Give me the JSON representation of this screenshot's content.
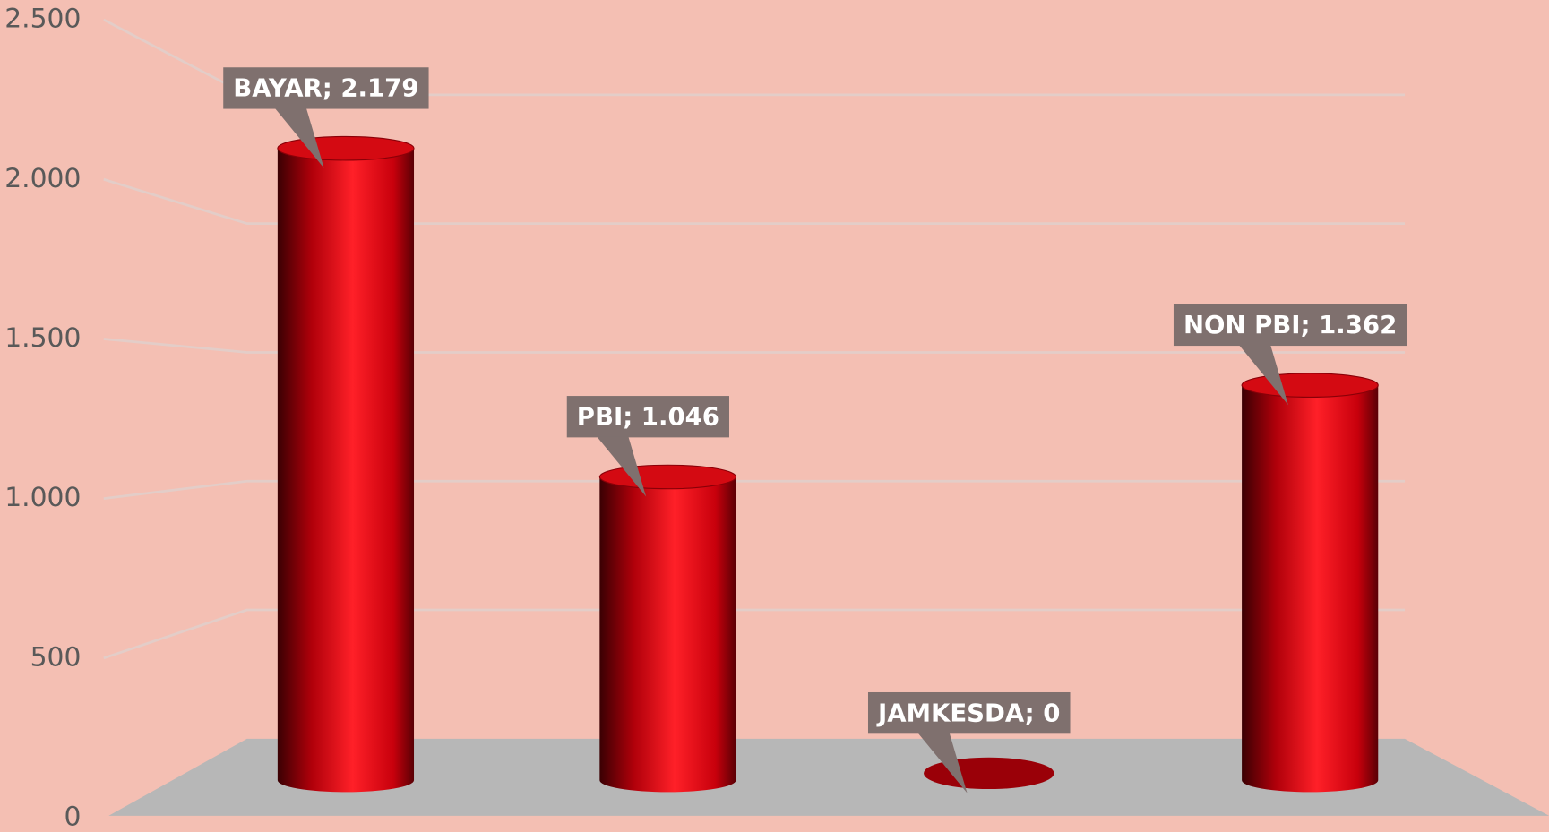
{
  "chart_data": {
    "type": "bar",
    "style": "3d-cylinder",
    "values": [
      2179,
      1046,
      0,
      1362
    ],
    "value_labels": [
      "BAYAR; 2.179",
      "PBI; 1.046",
      "JAMKESDA; 0",
      "NON PBI; 1.362"
    ],
    "color": "#e0141c",
    "ylim": [
      0,
      2500
    ],
    "yticks": [
      0,
      500,
      {
        "value": 1000,
        "label": "1.000"
      },
      {
        "value": 1500,
        "label": "1.500"
      },
      {
        "value": 2000,
        "label": "2.000"
      },
      {
        "value": 2500,
        "label": "2.500"
      }
    ],
    "grid": true
  }
}
